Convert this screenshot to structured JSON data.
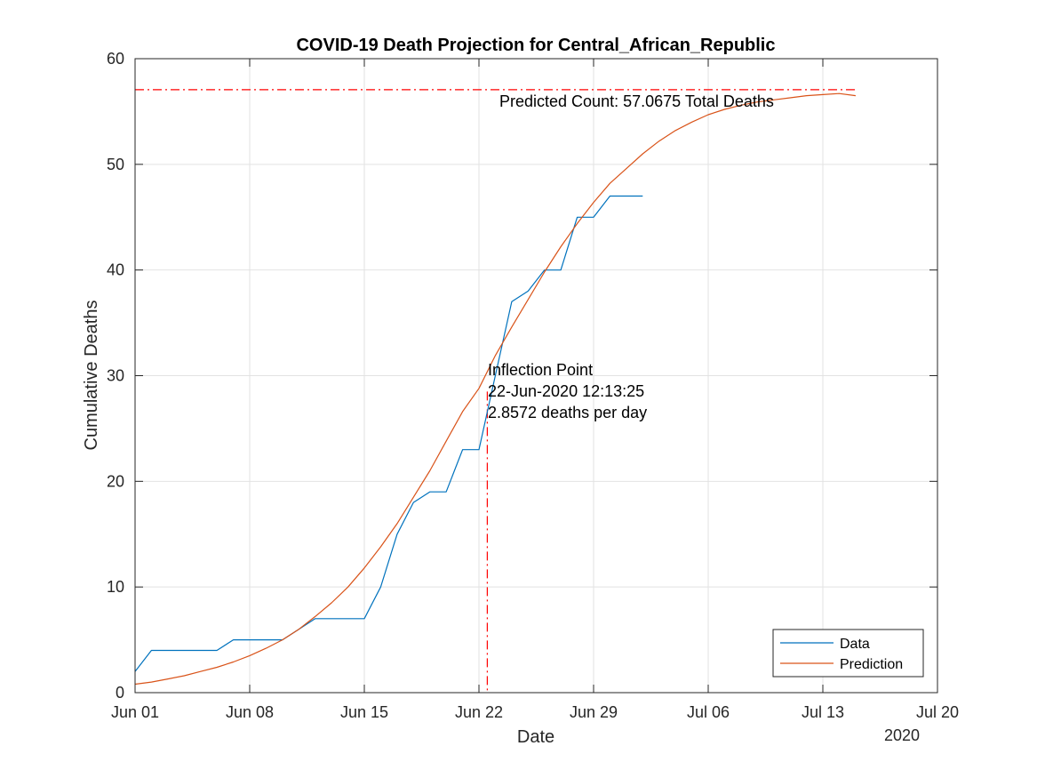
{
  "chart_data": {
    "type": "line",
    "title": "COVID-19 Death Projection for Central_African_Republic",
    "xlabel": "Date",
    "ylabel": "Cumulative Deaths",
    "x_year_label": "2020",
    "xlim": [
      "2020-06-01",
      "2020-07-20"
    ],
    "ylim": [
      0,
      60
    ],
    "grid": true,
    "x_ticks": [
      {
        "date": "2020-06-01",
        "label": "Jun 01"
      },
      {
        "date": "2020-06-08",
        "label": "Jun 08"
      },
      {
        "date": "2020-06-15",
        "label": "Jun 15"
      },
      {
        "date": "2020-06-22",
        "label": "Jun 22"
      },
      {
        "date": "2020-06-29",
        "label": "Jun 29"
      },
      {
        "date": "2020-07-06",
        "label": "Jul 06"
      },
      {
        "date": "2020-07-13",
        "label": "Jul 13"
      },
      {
        "date": "2020-07-20",
        "label": "Jul 20"
      }
    ],
    "y_ticks": [
      0,
      10,
      20,
      30,
      40,
      50,
      60
    ],
    "series": [
      {
        "name": "Data",
        "color": "#0072BD",
        "style": "solid",
        "x": [
          "2020-06-01",
          "2020-06-02",
          "2020-06-03",
          "2020-06-04",
          "2020-06-05",
          "2020-06-06",
          "2020-06-07",
          "2020-06-08",
          "2020-06-09",
          "2020-06-10",
          "2020-06-11",
          "2020-06-12",
          "2020-06-13",
          "2020-06-14",
          "2020-06-15",
          "2020-06-16",
          "2020-06-17",
          "2020-06-18",
          "2020-06-19",
          "2020-06-20",
          "2020-06-21",
          "2020-06-22",
          "2020-06-23",
          "2020-06-24",
          "2020-06-25",
          "2020-06-26",
          "2020-06-27",
          "2020-06-28",
          "2020-06-29",
          "2020-06-30",
          "2020-07-01",
          "2020-07-02"
        ],
        "y": [
          2,
          4,
          4,
          4,
          4,
          4,
          5,
          5,
          5,
          5,
          6,
          7,
          7,
          7,
          7,
          10,
          15,
          18,
          19,
          19,
          23,
          23,
          30,
          37,
          38,
          40,
          40,
          45,
          45,
          47,
          47,
          47
        ]
      },
      {
        "name": "Prediction",
        "color": "#D95319",
        "style": "solid",
        "x": [
          "2020-06-01",
          "2020-06-02",
          "2020-06-03",
          "2020-06-04",
          "2020-06-05",
          "2020-06-06",
          "2020-06-07",
          "2020-06-08",
          "2020-06-09",
          "2020-06-10",
          "2020-06-11",
          "2020-06-12",
          "2020-06-13",
          "2020-06-14",
          "2020-06-15",
          "2020-06-16",
          "2020-06-17",
          "2020-06-18",
          "2020-06-19",
          "2020-06-20",
          "2020-06-21",
          "2020-06-22",
          "2020-06-23",
          "2020-06-24",
          "2020-06-25",
          "2020-06-26",
          "2020-06-27",
          "2020-06-28",
          "2020-06-29",
          "2020-06-30",
          "2020-07-01",
          "2020-07-02",
          "2020-07-03",
          "2020-07-04",
          "2020-07-05",
          "2020-07-06",
          "2020-07-07",
          "2020-07-08",
          "2020-07-09",
          "2020-07-10",
          "2020-07-11",
          "2020-07-12",
          "2020-07-13",
          "2020-07-14",
          "2020-07-15"
        ],
        "y": [
          0.8,
          1.0,
          1.3,
          1.6,
          2.0,
          2.4,
          2.9,
          3.5,
          4.2,
          5.0,
          6.0,
          7.2,
          8.5,
          10.0,
          11.8,
          13.8,
          16.0,
          18.5,
          21.0,
          23.8,
          26.6,
          28.8,
          31.9,
          34.6,
          37.2,
          39.8,
          42.2,
          44.4,
          46.4,
          48.2,
          49.6,
          51.0,
          52.2,
          53.2,
          54.0,
          54.7,
          55.2,
          55.6,
          55.9,
          56.1,
          56.3,
          56.5,
          56.6,
          56.7,
          56.5
        ]
      }
    ],
    "reference_lines": [
      {
        "orientation": "horizontal",
        "y": 57.0675,
        "color": "#FF0000",
        "style": "dash-dot"
      },
      {
        "orientation": "vertical",
        "x": "2020-06-22T12:13:25",
        "color": "#FF0000",
        "style": "dash-dot"
      }
    ],
    "annotations": [
      {
        "id": "predicted",
        "lines": [
          "Predicted Count: 57.0675 Total Deaths"
        ]
      },
      {
        "id": "inflection",
        "lines": [
          "Inflection Point",
          "22-Jun-2020 12:13:25",
          "2.8572 deaths per day"
        ]
      }
    ],
    "legend": {
      "position": "bottom-right",
      "entries": [
        "Data",
        "Prediction"
      ]
    }
  }
}
